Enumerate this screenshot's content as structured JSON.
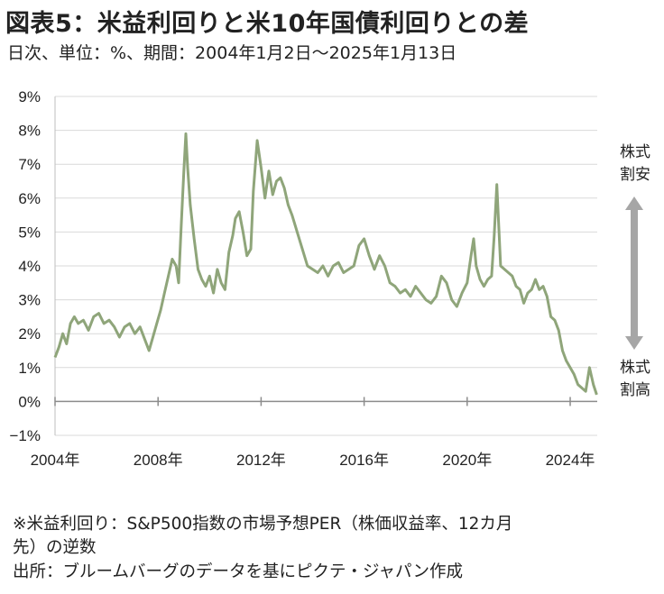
{
  "header": {
    "title": "図表5：米益利回りと米10年国債利回りとの差",
    "subtitle": "日次、単位：%、期間：2004年1月2日～2025年1月13日"
  },
  "annotations": {
    "top_label_line1": "株式",
    "top_label_line2": "割安",
    "bottom_label_line1": "株式",
    "bottom_label_line2": "割高",
    "arrow_color": "#a6a6a6"
  },
  "footnotes": {
    "note_line1": "※米益利回り：S&P500指数の市場予想PER（株価収益率、12カ月",
    "note_line2": "先）の逆数",
    "source": "出所：ブルームバーグのデータを基にピクテ・ジャパン作成"
  },
  "chart_data": {
    "type": "line",
    "title": "図表5：米益利回りと米10年国債利回りとの差",
    "subtitle": "日次、単位：%、期間：2004年1月2日～2025年1月13日",
    "xlabel": "",
    "ylabel": "",
    "xlim": [
      2004.0,
      2025.05
    ],
    "ylim": [
      -1,
      9
    ],
    "y_ticks": [
      "9%",
      "8%",
      "7%",
      "6%",
      "5%",
      "4%",
      "3%",
      "2%",
      "1%",
      "0%",
      "−1%"
    ],
    "x_ticks": [
      "2004年",
      "2008年",
      "2012年",
      "2016年",
      "2020年",
      "2024年"
    ],
    "grid": true,
    "legend": "none",
    "line_color": "#8fa57a",
    "series": [
      {
        "x": [
          2004.0,
          2004.15,
          2004.3,
          2004.45,
          2004.6,
          2004.75,
          2004.9,
          2005.1,
          2005.3,
          2005.5,
          2005.7,
          2005.9,
          2006.1,
          2006.3,
          2006.5,
          2006.7,
          2006.9,
          2007.1,
          2007.3,
          2007.5,
          2007.65,
          2007.8,
          2007.95,
          2008.1,
          2008.25,
          2008.4,
          2008.55,
          2008.7,
          2008.8,
          2008.9,
          2009.0,
          2009.08,
          2009.15,
          2009.25,
          2009.4,
          2009.55,
          2009.7,
          2009.85,
          2010.0,
          2010.15,
          2010.3,
          2010.45,
          2010.6,
          2010.75,
          2010.9,
          2011.0,
          2011.15,
          2011.3,
          2011.45,
          2011.6,
          2011.7,
          2011.85,
          2012.0,
          2012.15,
          2012.3,
          2012.45,
          2012.6,
          2012.75,
          2012.9,
          2013.05,
          2013.2,
          2013.4,
          2013.6,
          2013.8,
          2014.0,
          2014.2,
          2014.4,
          2014.6,
          2014.8,
          2015.0,
          2015.2,
          2015.4,
          2015.6,
          2015.8,
          2016.0,
          2016.2,
          2016.4,
          2016.6,
          2016.8,
          2017.0,
          2017.2,
          2017.4,
          2017.6,
          2017.8,
          2018.0,
          2018.2,
          2018.4,
          2018.6,
          2018.8,
          2019.0,
          2019.2,
          2019.4,
          2019.6,
          2019.8,
          2020.0,
          2020.15,
          2020.25,
          2020.35,
          2020.5,
          2020.65,
          2020.8,
          2020.95,
          2021.05,
          2021.15,
          2021.3,
          2021.45,
          2021.6,
          2021.75,
          2021.9,
          2022.05,
          2022.2,
          2022.35,
          2022.5,
          2022.65,
          2022.8,
          2022.95,
          2023.1,
          2023.25,
          2023.4,
          2023.55,
          2023.7,
          2023.85,
          2024.0,
          2024.15,
          2024.3,
          2024.45,
          2024.6,
          2024.75,
          2024.9,
          2025.03
        ],
        "y": [
          1.3,
          1.6,
          2.0,
          1.7,
          2.3,
          2.5,
          2.3,
          2.4,
          2.1,
          2.5,
          2.6,
          2.3,
          2.4,
          2.2,
          1.9,
          2.2,
          2.3,
          2.0,
          2.2,
          1.8,
          1.5,
          1.9,
          2.3,
          2.7,
          3.2,
          3.7,
          4.2,
          4.0,
          3.5,
          5.2,
          6.8,
          7.9,
          6.9,
          5.8,
          4.8,
          3.9,
          3.6,
          3.4,
          3.7,
          3.2,
          3.9,
          3.5,
          3.3,
          4.4,
          4.9,
          5.4,
          5.6,
          5.0,
          4.3,
          4.5,
          6.2,
          7.7,
          6.9,
          6.0,
          6.8,
          6.1,
          6.5,
          6.6,
          6.3,
          5.8,
          5.5,
          5.0,
          4.5,
          4.0,
          3.9,
          3.8,
          4.0,
          3.7,
          4.0,
          4.1,
          3.8,
          3.9,
          4.0,
          4.6,
          4.8,
          4.3,
          3.9,
          4.3,
          4.0,
          3.5,
          3.4,
          3.2,
          3.3,
          3.1,
          3.4,
          3.2,
          3.0,
          2.9,
          3.1,
          3.7,
          3.5,
          3.0,
          2.8,
          3.2,
          3.5,
          4.3,
          4.8,
          4.0,
          3.6,
          3.4,
          3.6,
          3.7,
          4.9,
          6.4,
          4.0,
          3.9,
          3.8,
          3.7,
          3.4,
          3.3,
          2.9,
          3.2,
          3.3,
          3.6,
          3.3,
          3.4,
          3.1,
          2.5,
          2.4,
          2.1,
          1.5,
          1.2,
          1.0,
          0.8,
          0.5,
          0.4,
          0.3,
          1.0,
          0.5,
          0.2
        ]
      }
    ]
  }
}
